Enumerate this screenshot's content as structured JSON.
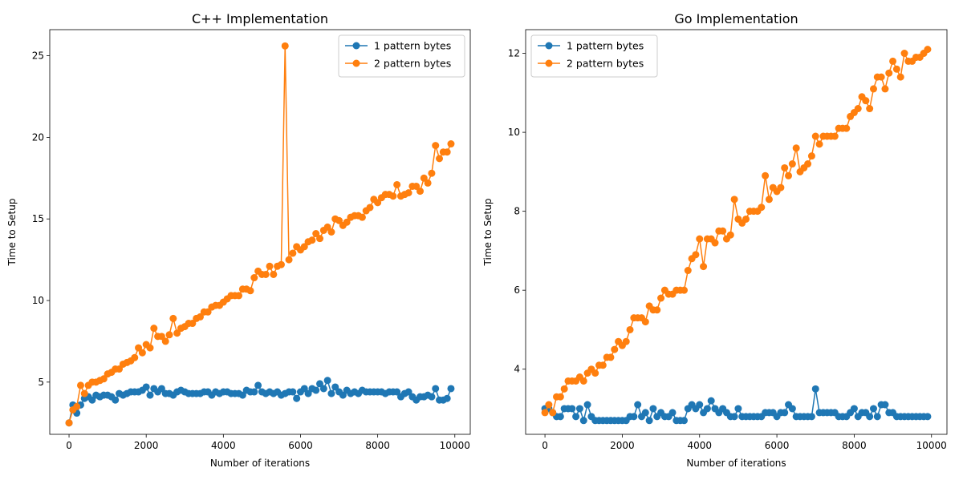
{
  "chart_data": [
    {
      "type": "line",
      "title": "C++ Implementation",
      "xlabel": "Number of iterations",
      "ylabel": "Time to Setup",
      "xlim": [
        -500,
        10400
      ],
      "ylim": [
        1.8,
        26.6
      ],
      "xticks": [
        0,
        2000,
        4000,
        6000,
        8000,
        10000
      ],
      "yticks": [
        5,
        10,
        15,
        20,
        25
      ],
      "legend_position": "top-right",
      "colors": [
        "#1f77b4",
        "#ff7f0e"
      ],
      "x": [
        0,
        100,
        200,
        300,
        400,
        500,
        600,
        700,
        800,
        900,
        1000,
        1100,
        1200,
        1300,
        1400,
        1500,
        1600,
        1700,
        1800,
        1900,
        2000,
        2100,
        2200,
        2300,
        2400,
        2500,
        2600,
        2700,
        2800,
        2900,
        3000,
        3100,
        3200,
        3300,
        3400,
        3500,
        3600,
        3700,
        3800,
        3900,
        4000,
        4100,
        4200,
        4300,
        4400,
        4500,
        4600,
        4700,
        4800,
        4900,
        5000,
        5100,
        5200,
        5300,
        5400,
        5500,
        5600,
        5700,
        5800,
        5900,
        6000,
        6100,
        6200,
        6300,
        6400,
        6500,
        6600,
        6700,
        6800,
        6900,
        7000,
        7100,
        7200,
        7300,
        7400,
        7500,
        7600,
        7700,
        7800,
        7900,
        8000,
        8100,
        8200,
        8300,
        8400,
        8500,
        8600,
        8700,
        8800,
        8900,
        9000,
        9100,
        9200,
        9300,
        9400,
        9500,
        9600,
        9700,
        9800,
        9900
      ],
      "series": [
        {
          "name": "1 pattern bytes",
          "values": [
            2.5,
            3.6,
            3.1,
            3.6,
            4.0,
            4.1,
            3.9,
            4.2,
            4.1,
            4.2,
            4.2,
            4.1,
            3.9,
            4.3,
            4.2,
            4.3,
            4.4,
            4.4,
            4.4,
            4.5,
            4.7,
            4.2,
            4.6,
            4.4,
            4.6,
            4.3,
            4.3,
            4.2,
            4.4,
            4.5,
            4.4,
            4.3,
            4.3,
            4.3,
            4.3,
            4.4,
            4.4,
            4.2,
            4.4,
            4.3,
            4.4,
            4.4,
            4.3,
            4.3,
            4.3,
            4.2,
            4.5,
            4.4,
            4.4,
            4.8,
            4.4,
            4.3,
            4.4,
            4.3,
            4.4,
            4.2,
            4.3,
            4.4,
            4.4,
            4.0,
            4.4,
            4.6,
            4.3,
            4.6,
            4.5,
            4.9,
            4.6,
            5.1,
            4.3,
            4.7,
            4.4,
            4.2,
            4.5,
            4.3,
            4.4,
            4.3,
            4.5,
            4.4,
            4.4,
            4.4,
            4.4,
            4.4,
            4.3,
            4.4,
            4.4,
            4.4,
            4.1,
            4.3,
            4.4,
            4.1,
            3.9,
            4.1,
            4.1,
            4.2,
            4.1,
            4.6,
            3.9,
            3.9,
            4.0,
            4.6
          ]
        },
        {
          "name": "2 pattern bytes",
          "values": [
            2.5,
            3.3,
            3.5,
            4.8,
            4.3,
            4.8,
            5.0,
            5.0,
            5.1,
            5.2,
            5.5,
            5.6,
            5.8,
            5.8,
            6.1,
            6.2,
            6.3,
            6.5,
            7.1,
            6.8,
            7.3,
            7.1,
            8.3,
            7.8,
            7.8,
            7.5,
            7.9,
            8.9,
            8.0,
            8.3,
            8.4,
            8.6,
            8.6,
            8.9,
            9.0,
            9.3,
            9.3,
            9.6,
            9.7,
            9.7,
            9.9,
            10.1,
            10.3,
            10.3,
            10.3,
            10.7,
            10.7,
            10.6,
            11.4,
            11.8,
            11.6,
            11.6,
            12.1,
            11.6,
            12.1,
            12.2,
            25.6,
            12.5,
            12.9,
            13.3,
            13.1,
            13.3,
            13.6,
            13.7,
            14.1,
            13.8,
            14.3,
            14.5,
            14.2,
            15.0,
            14.9,
            14.6,
            14.8,
            15.1,
            15.2,
            15.2,
            15.1,
            15.5,
            15.7,
            16.2,
            16.0,
            16.3,
            16.5,
            16.5,
            16.4,
            17.1,
            16.4,
            16.5,
            16.6,
            17.0,
            17.0,
            16.7,
            17.5,
            17.2,
            17.8,
            19.5,
            18.7,
            19.1,
            19.1,
            19.6
          ]
        }
      ]
    },
    {
      "type": "line",
      "title": "Go Implementation",
      "xlabel": "Number of iterations",
      "ylabel": "Time to Setup",
      "xlim": [
        -500,
        10400
      ],
      "ylim": [
        2.35,
        12.6
      ],
      "xticks": [
        0,
        2000,
        4000,
        6000,
        8000,
        10000
      ],
      "yticks": [
        4,
        6,
        8,
        10,
        12
      ],
      "legend_position": "top-left",
      "colors": [
        "#1f77b4",
        "#ff7f0e"
      ],
      "x": [
        0,
        100,
        200,
        300,
        400,
        500,
        600,
        700,
        800,
        900,
        1000,
        1100,
        1200,
        1300,
        1400,
        1500,
        1600,
        1700,
        1800,
        1900,
        2000,
        2100,
        2200,
        2300,
        2400,
        2500,
        2600,
        2700,
        2800,
        2900,
        3000,
        3100,
        3200,
        3300,
        3400,
        3500,
        3600,
        3700,
        3800,
        3900,
        4000,
        4100,
        4200,
        4300,
        4400,
        4500,
        4600,
        4700,
        4800,
        4900,
        5000,
        5100,
        5200,
        5300,
        5400,
        5500,
        5600,
        5700,
        5800,
        5900,
        6000,
        6100,
        6200,
        6300,
        6400,
        6500,
        6600,
        6700,
        6800,
        6900,
        7000,
        7100,
        7200,
        7300,
        7400,
        7500,
        7600,
        7700,
        7800,
        7900,
        8000,
        8100,
        8200,
        8300,
        8400,
        8500,
        8600,
        8700,
        8800,
        8900,
        9000,
        9100,
        9200,
        9300,
        9400,
        9500,
        9600,
        9700,
        9800,
        9900
      ],
      "series": [
        {
          "name": "1 pattern bytes",
          "values": [
            3.0,
            3.0,
            2.9,
            2.8,
            2.8,
            3.0,
            3.0,
            3.0,
            2.8,
            3.0,
            2.7,
            3.1,
            2.8,
            2.7,
            2.7,
            2.7,
            2.7,
            2.7,
            2.7,
            2.7,
            2.7,
            2.7,
            2.8,
            2.8,
            3.1,
            2.8,
            2.9,
            2.7,
            3.0,
            2.8,
            2.9,
            2.8,
            2.8,
            2.9,
            2.7,
            2.7,
            2.7,
            3.0,
            3.1,
            3.0,
            3.1,
            2.9,
            3.0,
            3.2,
            3.0,
            2.9,
            3.0,
            2.9,
            2.8,
            2.8,
            3.0,
            2.8,
            2.8,
            2.8,
            2.8,
            2.8,
            2.8,
            2.9,
            2.9,
            2.9,
            2.8,
            2.9,
            2.9,
            3.1,
            3.0,
            2.8,
            2.8,
            2.8,
            2.8,
            2.8,
            3.5,
            2.9,
            2.9,
            2.9,
            2.9,
            2.9,
            2.8,
            2.8,
            2.8,
            2.9,
            3.0,
            2.8,
            2.9,
            2.9,
            2.8,
            3.0,
            2.8,
            3.1,
            3.1,
            2.9,
            2.9,
            2.8,
            2.8,
            2.8,
            2.8,
            2.8,
            2.8,
            2.8,
            2.8,
            2.8
          ]
        },
        {
          "name": "2 pattern bytes",
          "values": [
            2.9,
            3.1,
            2.9,
            3.3,
            3.3,
            3.5,
            3.7,
            3.7,
            3.7,
            3.8,
            3.7,
            3.9,
            4.0,
            3.9,
            4.1,
            4.1,
            4.3,
            4.3,
            4.5,
            4.7,
            4.6,
            4.7,
            5.0,
            5.3,
            5.3,
            5.3,
            5.2,
            5.6,
            5.5,
            5.5,
            5.8,
            6.0,
            5.9,
            5.9,
            6.0,
            6.0,
            6.0,
            6.5,
            6.8,
            6.9,
            7.3,
            6.6,
            7.3,
            7.3,
            7.2,
            7.5,
            7.5,
            7.3,
            7.4,
            8.3,
            7.8,
            7.7,
            7.8,
            8.0,
            8.0,
            8.0,
            8.1,
            8.9,
            8.3,
            8.6,
            8.5,
            8.6,
            9.1,
            8.9,
            9.2,
            9.6,
            9.0,
            9.1,
            9.2,
            9.4,
            9.9,
            9.7,
            9.9,
            9.9,
            9.9,
            9.9,
            10.1,
            10.1,
            10.1,
            10.4,
            10.5,
            10.6,
            10.9,
            10.8,
            10.6,
            11.1,
            11.4,
            11.4,
            11.1,
            11.5,
            11.8,
            11.6,
            11.4,
            12.0,
            11.8,
            11.8,
            11.9,
            11.9,
            12.0,
            12.1
          ]
        }
      ]
    }
  ]
}
